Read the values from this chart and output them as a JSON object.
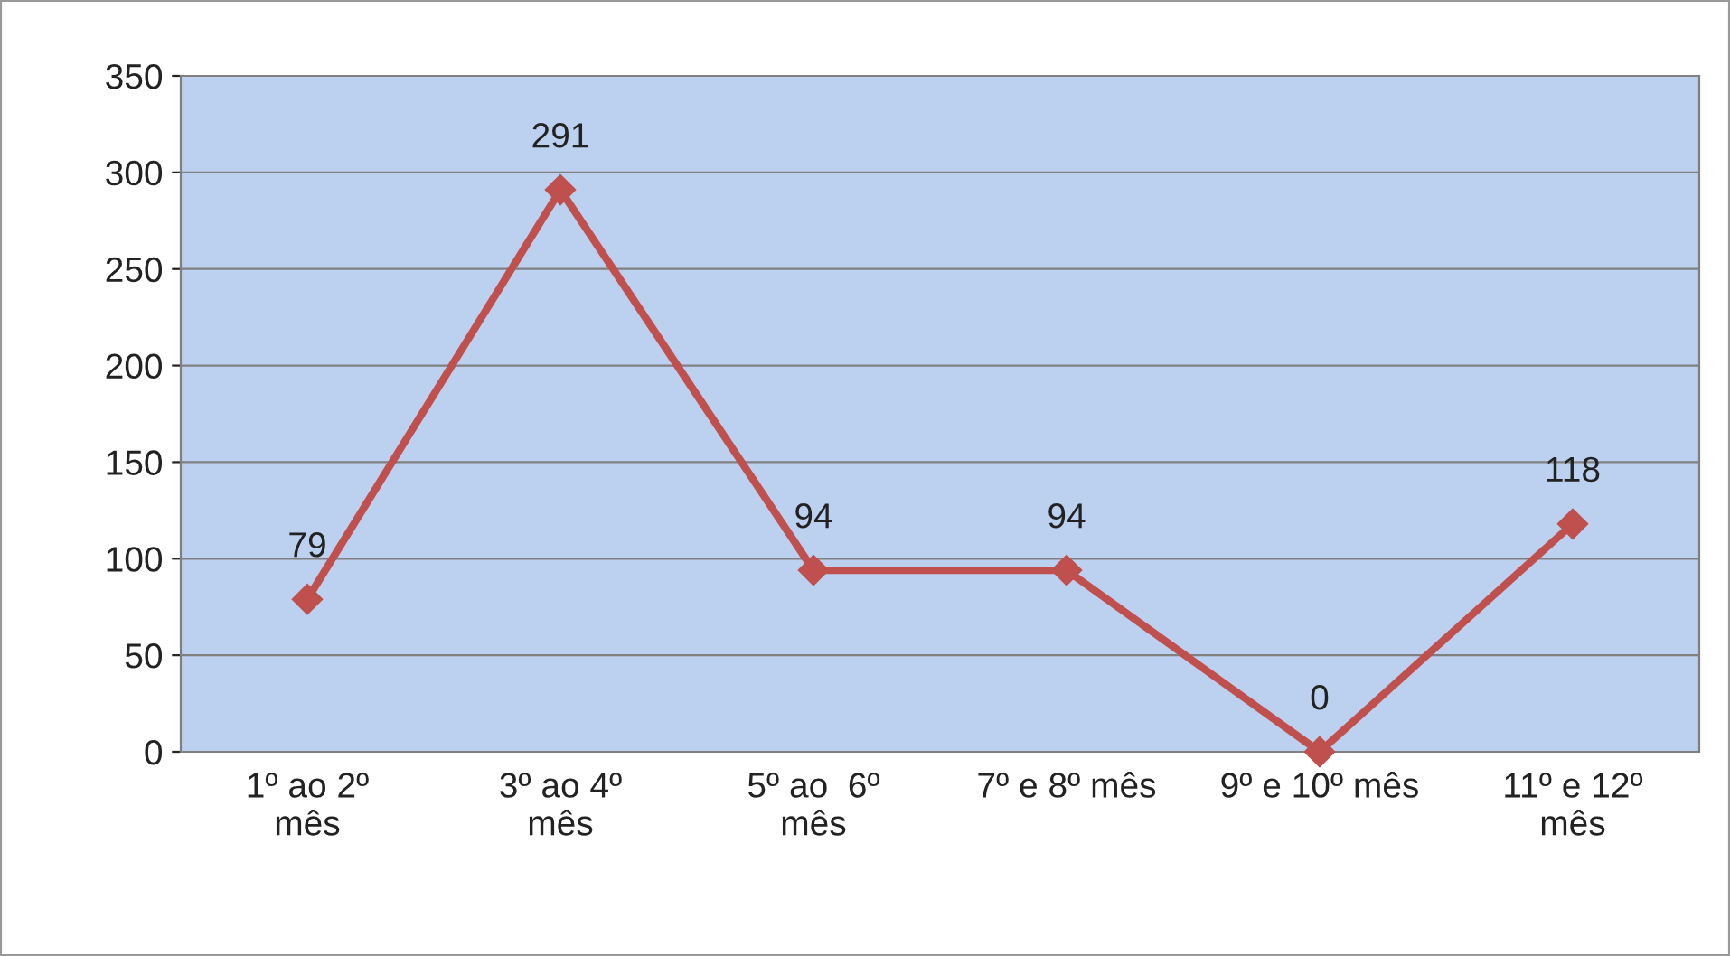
{
  "chart_data": {
    "type": "line",
    "categories": [
      "1º ao 2º\nmês",
      "3º ao 4º\nmês",
      "5º ao  6º\nmês",
      "7º e 8º mês",
      "9º e 10º mês",
      "11º e 12º\nmês"
    ],
    "series": [
      {
        "color": "#c0504d",
        "values": [
          79,
          291,
          94,
          94,
          0,
          118
        ]
      }
    ],
    "ylim": [
      0,
      350
    ],
    "yticks": [
      0,
      50,
      100,
      150,
      200,
      250,
      300,
      350
    ],
    "grid": "y",
    "marker": "diamond",
    "line_style": "solid",
    "data_labels": true
  }
}
